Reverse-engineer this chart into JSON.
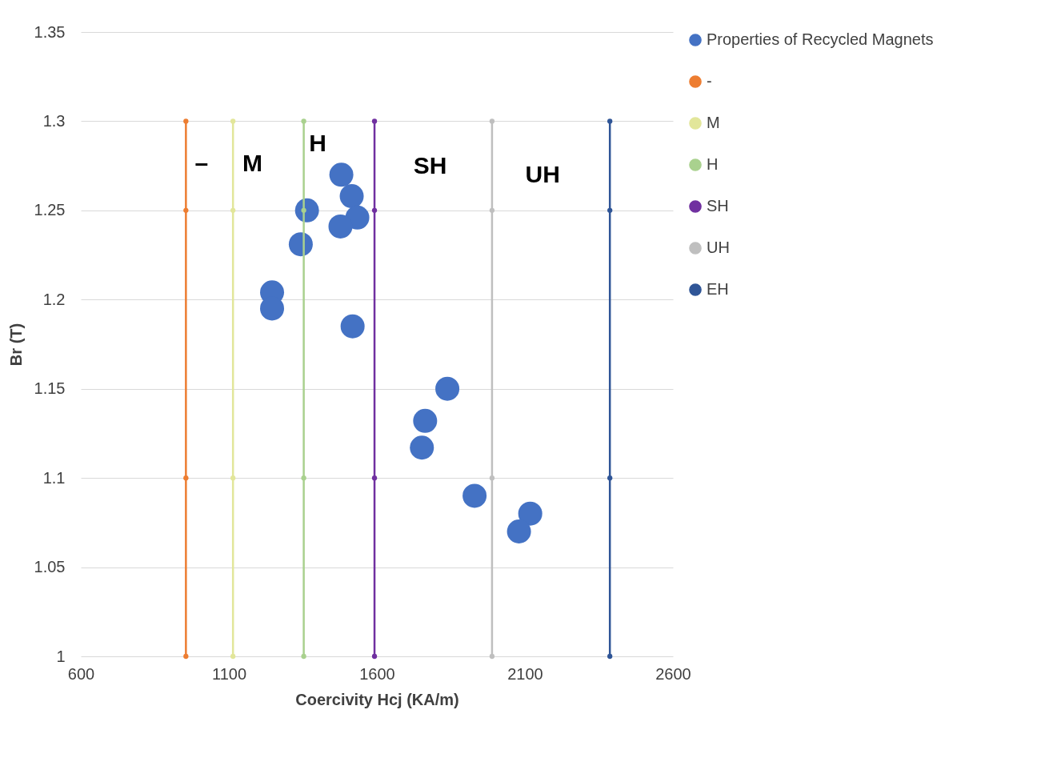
{
  "chart_data": {
    "type": "scatter",
    "xlabel": "Coercivity Hcj (KA/m)",
    "ylabel": "Br (T)",
    "xlim": [
      600,
      2600
    ],
    "xticks": [
      600,
      1100,
      1600,
      2100,
      2600
    ],
    "ylim": [
      1,
      1.35
    ],
    "yticks": [
      1,
      1.05,
      1.1,
      1.15,
      1.2,
      1.25,
      1.3,
      1.35
    ],
    "grid": "y",
    "legend": "right",
    "marker": "circle",
    "series": [
      {
        "name": "Properties of Recycled Magnets",
        "color": "#4472c4",
        "x": [
          1480,
          1364,
          1515,
          1534,
          1477,
          1343,
          1246,
          1246,
          1518,
          1838,
          1763,
          1752,
          1930,
          2118,
          2080
        ],
        "values": [
          1.27,
          1.25,
          1.258,
          1.246,
          1.241,
          1.231,
          1.204,
          1.195,
          1.185,
          1.15,
          1.132,
          1.117,
          1.09,
          1.08,
          1.07
        ]
      },
      {
        "name": "-",
        "type": "line",
        "color": "#ed7d31",
        "x": [
          955,
          955,
          955,
          955
        ],
        "values": [
          1,
          1.1,
          1.25,
          1.3
        ]
      },
      {
        "name": "M",
        "type": "line",
        "color": "#e2e69a",
        "x": [
          1114,
          1114,
          1114,
          1114
        ],
        "values": [
          1,
          1.1,
          1.25,
          1.3
        ]
      },
      {
        "name": "H",
        "type": "line",
        "color": "#a9d18e",
        "x": [
          1353,
          1353,
          1353,
          1353
        ],
        "values": [
          1,
          1.1,
          1.25,
          1.3
        ]
      },
      {
        "name": "SH",
        "type": "line",
        "color": "#7030a0",
        "x": [
          1592,
          1592,
          1592,
          1592
        ],
        "values": [
          1,
          1.1,
          1.25,
          1.3
        ]
      },
      {
        "name": "UH",
        "type": "line",
        "color": "#bfbfbf",
        "x": [
          1989,
          1989,
          1989,
          1989
        ],
        "values": [
          1,
          1.1,
          1.25,
          1.3
        ]
      },
      {
        "name": "EH",
        "type": "line",
        "color": "#2f5597",
        "x": [
          2387,
          2387,
          2387,
          2387
        ],
        "values": [
          1,
          1.1,
          1.25,
          1.3
        ]
      }
    ],
    "annotations": [
      "–",
      "M",
      "H",
      "SH",
      "UH"
    ]
  }
}
